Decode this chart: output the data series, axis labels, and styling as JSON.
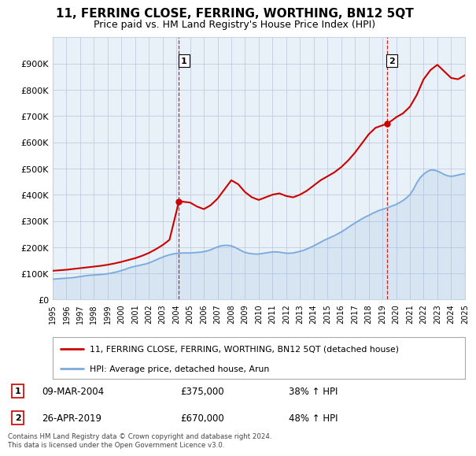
{
  "title": "11, FERRING CLOSE, FERRING, WORTHING, BN12 5QT",
  "subtitle": "Price paid vs. HM Land Registry's House Price Index (HPI)",
  "hpi_label": "HPI: Average price, detached house, Arun",
  "price_label": "11, FERRING CLOSE, FERRING, WORTHING, BN12 5QT (detached house)",
  "footer": "Contains HM Land Registry data © Crown copyright and database right 2024.\nThis data is licensed under the Open Government Licence v3.0.",
  "sale1_label": "09-MAR-2004",
  "sale1_price": "£375,000",
  "sale1_pct": "38% ↑ HPI",
  "sale2_label": "26-APR-2019",
  "sale2_price": "£670,000",
  "sale2_pct": "48% ↑ HPI",
  "hpi_color": "#7aaadd",
  "price_color": "#cc0000",
  "background_color": "#ffffff",
  "chart_bg": "#e8f0f8",
  "grid_color": "#c0cce0",
  "sale1_x": 2004.19,
  "sale1_y": 375000,
  "sale2_x": 2019.32,
  "sale2_y": 670000,
  "hpi_years": [
    1995,
    1995.25,
    1995.5,
    1995.75,
    1996,
    1996.25,
    1996.5,
    1996.75,
    1997,
    1997.25,
    1997.5,
    1997.75,
    1998,
    1998.25,
    1998.5,
    1998.75,
    1999,
    1999.25,
    1999.5,
    1999.75,
    2000,
    2000.25,
    2000.5,
    2000.75,
    2001,
    2001.25,
    2001.5,
    2001.75,
    2002,
    2002.25,
    2002.5,
    2002.75,
    2003,
    2003.25,
    2003.5,
    2003.75,
    2004,
    2004.25,
    2004.5,
    2004.75,
    2005,
    2005.25,
    2005.5,
    2005.75,
    2006,
    2006.25,
    2006.5,
    2006.75,
    2007,
    2007.25,
    2007.5,
    2007.75,
    2008,
    2008.25,
    2008.5,
    2008.75,
    2009,
    2009.25,
    2009.5,
    2009.75,
    2010,
    2010.25,
    2010.5,
    2010.75,
    2011,
    2011.25,
    2011.5,
    2011.75,
    2012,
    2012.25,
    2012.5,
    2012.75,
    2013,
    2013.25,
    2013.5,
    2013.75,
    2014,
    2014.25,
    2014.5,
    2014.75,
    2015,
    2015.25,
    2015.5,
    2015.75,
    2016,
    2016.25,
    2016.5,
    2016.75,
    2017,
    2017.25,
    2017.5,
    2017.75,
    2018,
    2018.25,
    2018.5,
    2018.75,
    2019,
    2019.25,
    2019.5,
    2019.75,
    2020,
    2020.25,
    2020.5,
    2020.75,
    2021,
    2021.25,
    2021.5,
    2021.75,
    2022,
    2022.25,
    2022.5,
    2022.75,
    2023,
    2023.25,
    2023.5,
    2023.75,
    2024,
    2024.25,
    2024.5,
    2024.75,
    2025
  ],
  "hpi_values": [
    78000,
    79000,
    80000,
    81000,
    82000,
    83000,
    84000,
    86000,
    88000,
    90000,
    92000,
    93000,
    94000,
    95000,
    96000,
    97000,
    99000,
    101000,
    104000,
    107000,
    111000,
    115000,
    120000,
    124000,
    127000,
    130000,
    133000,
    136000,
    140000,
    145000,
    151000,
    157000,
    162000,
    167000,
    171000,
    174000,
    176000,
    177000,
    178000,
    178000,
    178000,
    179000,
    180000,
    181000,
    183000,
    186000,
    190000,
    196000,
    201000,
    205000,
    207000,
    207000,
    205000,
    200000,
    193000,
    186000,
    180000,
    177000,
    175000,
    174000,
    174000,
    176000,
    178000,
    180000,
    182000,
    182000,
    181000,
    179000,
    177000,
    177000,
    178000,
    181000,
    184000,
    188000,
    193000,
    199000,
    205000,
    212000,
    219000,
    226000,
    232000,
    238000,
    244000,
    251000,
    258000,
    266000,
    275000,
    284000,
    292000,
    300000,
    308000,
    315000,
    321000,
    328000,
    334000,
    340000,
    344000,
    348000,
    353000,
    358000,
    363000,
    370000,
    378000,
    388000,
    400000,
    420000,
    445000,
    465000,
    478000,
    488000,
    494000,
    494000,
    490000,
    484000,
    477000,
    472000,
    470000,
    472000,
    475000,
    478000,
    480000
  ],
  "price_years": [
    1995,
    1995.5,
    1996,
    1996.5,
    1997,
    1997.5,
    1998,
    1998.5,
    1999,
    1999.5,
    2000,
    2000.5,
    2001,
    2001.5,
    2002,
    2002.5,
    2003,
    2003.5,
    2004.19,
    2005,
    2005.5,
    2006,
    2006.5,
    2007,
    2007.5,
    2008,
    2008.5,
    2009,
    2009.5,
    2010,
    2010.5,
    2011,
    2011.5,
    2012,
    2012.5,
    2013,
    2013.5,
    2014,
    2014.5,
    2015,
    2015.5,
    2016,
    2016.5,
    2017,
    2017.5,
    2018,
    2018.5,
    2019.32,
    2019.75,
    2020,
    2020.5,
    2021,
    2021.5,
    2022,
    2022.5,
    2023,
    2023.5,
    2024,
    2024.5,
    2025
  ],
  "price_values": [
    110000,
    112000,
    114000,
    117000,
    120000,
    123000,
    126000,
    129000,
    133000,
    138000,
    144000,
    151000,
    158000,
    167000,
    178000,
    192000,
    208000,
    228000,
    375000,
    370000,
    355000,
    345000,
    360000,
    385000,
    420000,
    455000,
    440000,
    410000,
    390000,
    380000,
    390000,
    400000,
    405000,
    395000,
    390000,
    400000,
    415000,
    435000,
    455000,
    470000,
    485000,
    505000,
    530000,
    560000,
    595000,
    630000,
    655000,
    670000,
    685000,
    695000,
    710000,
    735000,
    780000,
    840000,
    875000,
    895000,
    870000,
    845000,
    840000,
    855000
  ],
  "xlim": [
    1995,
    2025
  ],
  "ylim": [
    0,
    1000000
  ],
  "yticks": [
    0,
    100000,
    200000,
    300000,
    400000,
    500000,
    600000,
    700000,
    800000,
    900000
  ],
  "ytick_labels": [
    "£0",
    "£100K",
    "£200K",
    "£300K",
    "£400K",
    "£500K",
    "£600K",
    "£700K",
    "£800K",
    "£900K"
  ],
  "xtick_years": [
    1995,
    1996,
    1997,
    1998,
    1999,
    2000,
    2001,
    2002,
    2003,
    2004,
    2005,
    2006,
    2007,
    2008,
    2009,
    2010,
    2011,
    2012,
    2013,
    2014,
    2015,
    2016,
    2017,
    2018,
    2019,
    2020,
    2021,
    2022,
    2023,
    2024,
    2025
  ],
  "xtick_labels": [
    "1995",
    "1996",
    "1997",
    "1998",
    "1999",
    "2000",
    "2001",
    "2002",
    "2003",
    "2004",
    "2005",
    "2006",
    "2007",
    "2008",
    "2009",
    "2010",
    "2011",
    "2012",
    "2013",
    "2014",
    "2015",
    "2016",
    "2017",
    "2018",
    "2019",
    "2020",
    "2021",
    "2022",
    "2023",
    "2024",
    "2025"
  ]
}
